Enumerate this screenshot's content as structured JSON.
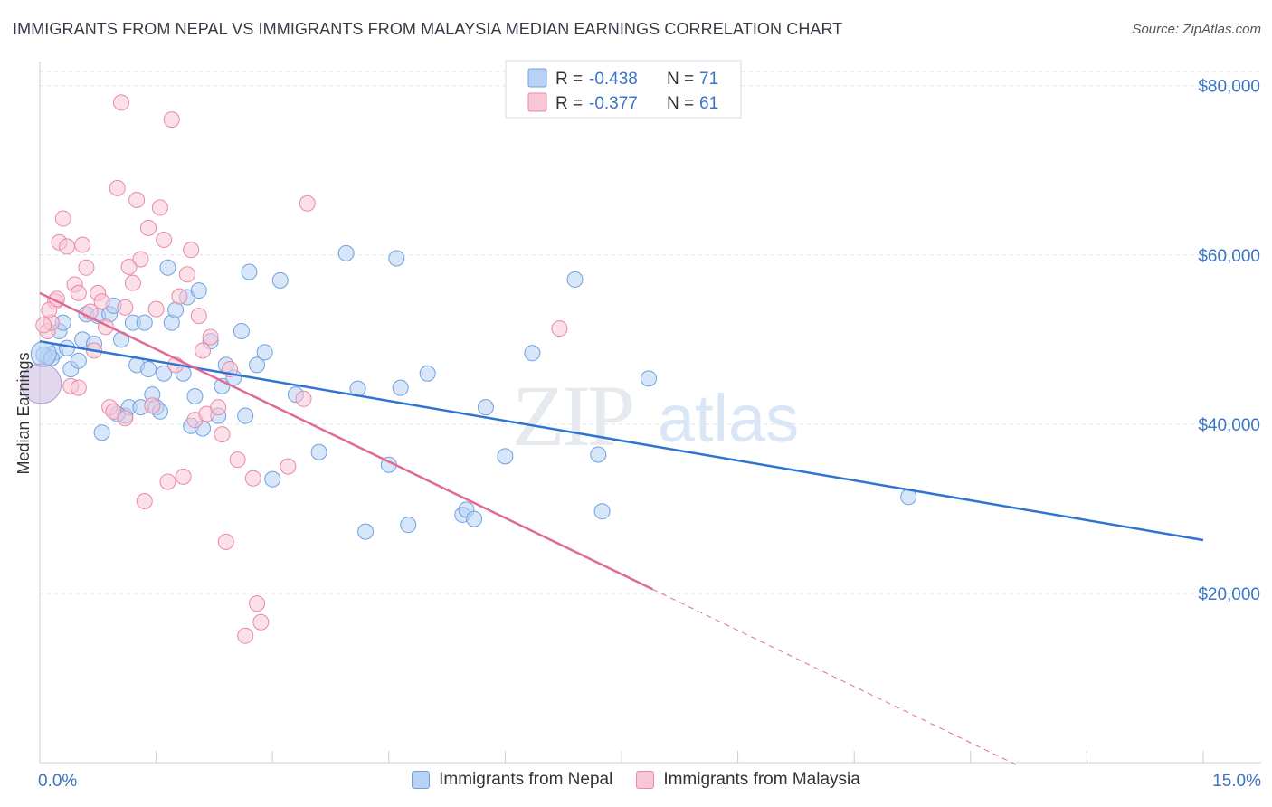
{
  "title": "IMMIGRANTS FROM NEPAL VS IMMIGRANTS FROM MALAYSIA MEDIAN EARNINGS CORRELATION CHART",
  "source": "Source: ZipAtlas.com",
  "watermark": {
    "zip": "ZIP",
    "atlas": "atlas"
  },
  "colors": {
    "nepal_fill": "#b8d2f4",
    "nepal_stroke": "#6fa1e0",
    "nepal_line": "#2f74d0",
    "malaysia_fill": "#f8c6d5",
    "malaysia_stroke": "#ea88a8",
    "malaysia_line": "#e06a94",
    "axis_label": "#3b73c5",
    "grid": "#dde3ea"
  },
  "chart_data": {
    "type": "scatter",
    "title": "IMMIGRANTS FROM NEPAL VS IMMIGRANTS FROM MALAYSIA MEDIAN EARNINGS CORRELATION CHART",
    "xlabel": "",
    "ylabel": "Median Earnings",
    "xlim": [
      0,
      15
    ],
    "ylim": [
      0,
      82000
    ],
    "x_tick_labels": [
      "0.0%",
      "15.0%"
    ],
    "y_ticks": [
      20000,
      40000,
      60000,
      80000
    ],
    "y_tick_labels": [
      "$20,000",
      "$40,000",
      "$60,000",
      "$80,000"
    ],
    "legend_stats": [
      {
        "r_label": "R =",
        "r_value": "-0.438",
        "n_label": "N =",
        "n_value": "71"
      },
      {
        "r_label": "R =",
        "r_value": "-0.377",
        "n_label": "N =",
        "n_value": "61"
      }
    ],
    "series": [
      {
        "name": "Immigrants from Nepal",
        "trend": {
          "x0": 0.0,
          "y0": 49800,
          "x1": 15.0,
          "y1": 26300
        },
        "points": [
          [
            0.1,
            48000
          ],
          [
            0.2,
            48500
          ],
          [
            0.25,
            51000
          ],
          [
            0.3,
            52000
          ],
          [
            0.35,
            49000
          ],
          [
            0.4,
            46500
          ],
          [
            0.5,
            47500
          ],
          [
            0.55,
            50000
          ],
          [
            0.6,
            53000
          ],
          [
            0.7,
            49500
          ],
          [
            0.75,
            52800
          ],
          [
            0.8,
            39000
          ],
          [
            0.9,
            53000
          ],
          [
            0.95,
            54000
          ],
          [
            1.05,
            50000
          ],
          [
            1.1,
            41000
          ],
          [
            1.15,
            42000
          ],
          [
            1.2,
            52000
          ],
          [
            1.25,
            47000
          ],
          [
            1.3,
            42000
          ],
          [
            1.35,
            52000
          ],
          [
            1.4,
            46500
          ],
          [
            1.45,
            43500
          ],
          [
            1.5,
            42000
          ],
          [
            1.55,
            41500
          ],
          [
            1.6,
            46000
          ],
          [
            1.65,
            58500
          ],
          [
            1.7,
            52000
          ],
          [
            1.75,
            53500
          ],
          [
            1.85,
            46000
          ],
          [
            1.9,
            55000
          ],
          [
            1.95,
            39800
          ],
          [
            2.0,
            43300
          ],
          [
            2.05,
            55800
          ],
          [
            2.1,
            39500
          ],
          [
            2.2,
            49800
          ],
          [
            2.3,
            41000
          ],
          [
            2.35,
            44500
          ],
          [
            2.4,
            47000
          ],
          [
            2.5,
            45500
          ],
          [
            2.6,
            51000
          ],
          [
            2.65,
            41000
          ],
          [
            2.7,
            58000
          ],
          [
            2.8,
            47000
          ],
          [
            2.9,
            48500
          ],
          [
            3.0,
            33500
          ],
          [
            3.1,
            57000
          ],
          [
            3.3,
            43500
          ],
          [
            3.6,
            36700
          ],
          [
            3.95,
            60200
          ],
          [
            4.2,
            27300
          ],
          [
            4.1,
            44200
          ],
          [
            4.5,
            35200
          ],
          [
            4.6,
            59600
          ],
          [
            4.65,
            44300
          ],
          [
            4.75,
            28100
          ],
          [
            5.0,
            46000
          ],
          [
            5.45,
            29300
          ],
          [
            5.5,
            29900
          ],
          [
            5.6,
            28800
          ],
          [
            5.75,
            42000
          ],
          [
            6.0,
            36200
          ],
          [
            6.35,
            48400
          ],
          [
            6.9,
            57100
          ],
          [
            7.2,
            36400
          ],
          [
            7.25,
            29700
          ],
          [
            7.85,
            45400
          ],
          [
            11.2,
            31400
          ],
          [
            0.05,
            48200
          ],
          [
            0.15,
            47800
          ],
          [
            1.0,
            41200
          ]
        ]
      },
      {
        "name": "Immigrants from Malaysia",
        "trend": {
          "x0": 0.0,
          "y0": 55500,
          "x1": 7.9,
          "y1": 20500
        },
        "trend_dashed": {
          "x0": 7.9,
          "y0": 20500,
          "x1": 12.6,
          "y1": -300
        },
        "points": [
          [
            0.1,
            51000
          ],
          [
            0.15,
            52000
          ],
          [
            0.2,
            54500
          ],
          [
            0.25,
            61500
          ],
          [
            0.3,
            64300
          ],
          [
            0.35,
            61000
          ],
          [
            0.4,
            44500
          ],
          [
            0.45,
            56500
          ],
          [
            0.5,
            55500
          ],
          [
            0.55,
            61200
          ],
          [
            0.6,
            58500
          ],
          [
            0.65,
            53300
          ],
          [
            0.7,
            48700
          ],
          [
            0.75,
            55500
          ],
          [
            0.8,
            54500
          ],
          [
            0.85,
            51500
          ],
          [
            0.9,
            42000
          ],
          [
            0.95,
            41500
          ],
          [
            1.0,
            67900
          ],
          [
            1.05,
            78000
          ],
          [
            1.1,
            53800
          ],
          [
            1.15,
            58600
          ],
          [
            1.2,
            56700
          ],
          [
            1.25,
            66500
          ],
          [
            1.3,
            59500
          ],
          [
            1.35,
            30900
          ],
          [
            1.4,
            63200
          ],
          [
            1.45,
            42200
          ],
          [
            1.5,
            53600
          ],
          [
            1.55,
            65600
          ],
          [
            1.6,
            61800
          ],
          [
            1.65,
            33200
          ],
          [
            1.7,
            76000
          ],
          [
            1.75,
            47000
          ],
          [
            1.8,
            55100
          ],
          [
            1.85,
            33800
          ],
          [
            1.9,
            57700
          ],
          [
            1.95,
            60600
          ],
          [
            2.0,
            40500
          ],
          [
            2.05,
            52800
          ],
          [
            2.1,
            48700
          ],
          [
            2.15,
            41200
          ],
          [
            2.2,
            50300
          ],
          [
            2.3,
            42000
          ],
          [
            2.35,
            38800
          ],
          [
            2.4,
            26100
          ],
          [
            2.45,
            46500
          ],
          [
            2.55,
            35800
          ],
          [
            2.65,
            15000
          ],
          [
            2.75,
            33600
          ],
          [
            2.8,
            18800
          ],
          [
            2.85,
            16600
          ],
          [
            3.2,
            35000
          ],
          [
            3.4,
            43000
          ],
          [
            3.45,
            66100
          ],
          [
            6.7,
            51300
          ],
          [
            0.05,
            51700
          ],
          [
            0.12,
            53500
          ],
          [
            0.22,
            54800
          ],
          [
            0.5,
            44300
          ],
          [
            1.1,
            40700
          ]
        ]
      }
    ]
  },
  "bottom_legend": [
    {
      "label": "Immigrants from Nepal"
    },
    {
      "label": "Immigrants from Malaysia"
    }
  ]
}
